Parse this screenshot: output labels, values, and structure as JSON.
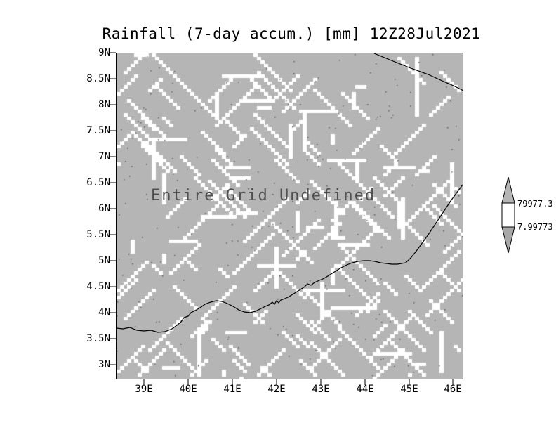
{
  "title": "Rainfall (7-day accum.) [mm] 12Z28Jul2021",
  "annotation": "Entire Grid Undefined",
  "axes": {
    "y": {
      "ticks": [
        "9N",
        "8.5N",
        "8N",
        "7.5N",
        "7N",
        "6.5N",
        "6N",
        "5.5N",
        "5N",
        "4.5N",
        "4N",
        "3.5N",
        "3N"
      ]
    },
    "x": {
      "ticks": [
        "39E",
        "40E",
        "41E",
        "42E",
        "43E",
        "44E",
        "45E",
        "46E"
      ]
    }
  },
  "colorbar": {
    "max_label": "79977.3",
    "min_label": "7.99773"
  },
  "colors": {
    "plot_bg": "#b5b5b5",
    "speckle": "#ffffff",
    "coastline": "#000000",
    "annotation": "#4f4f4f",
    "frame": "#000000"
  },
  "chart_data": {
    "type": "heatmap",
    "title": "Rainfall (7-day accum.) [mm] 12Z28Jul2021",
    "xlabel": "",
    "ylabel": "",
    "x_tick_labels": [
      "39E",
      "40E",
      "41E",
      "42E",
      "43E",
      "44E",
      "45E",
      "46E"
    ],
    "y_tick_labels": [
      "9N",
      "8.5N",
      "8N",
      "7.5N",
      "7N",
      "6.5N",
      "6N",
      "5.5N",
      "5N",
      "4.5N",
      "4N",
      "3.5N",
      "3N"
    ],
    "x_range_deg_east": [
      38.4,
      46.2
    ],
    "y_range_deg_north": [
      2.7,
      9.0
    ],
    "values": null,
    "status": "Entire Grid Undefined",
    "colorbar_levels": [
      7.99773,
      79977.3
    ],
    "legend_position": "right",
    "grid": false,
    "notes": "All grid cells undefined; map shows undefined-value texture over gray with coastlines"
  }
}
